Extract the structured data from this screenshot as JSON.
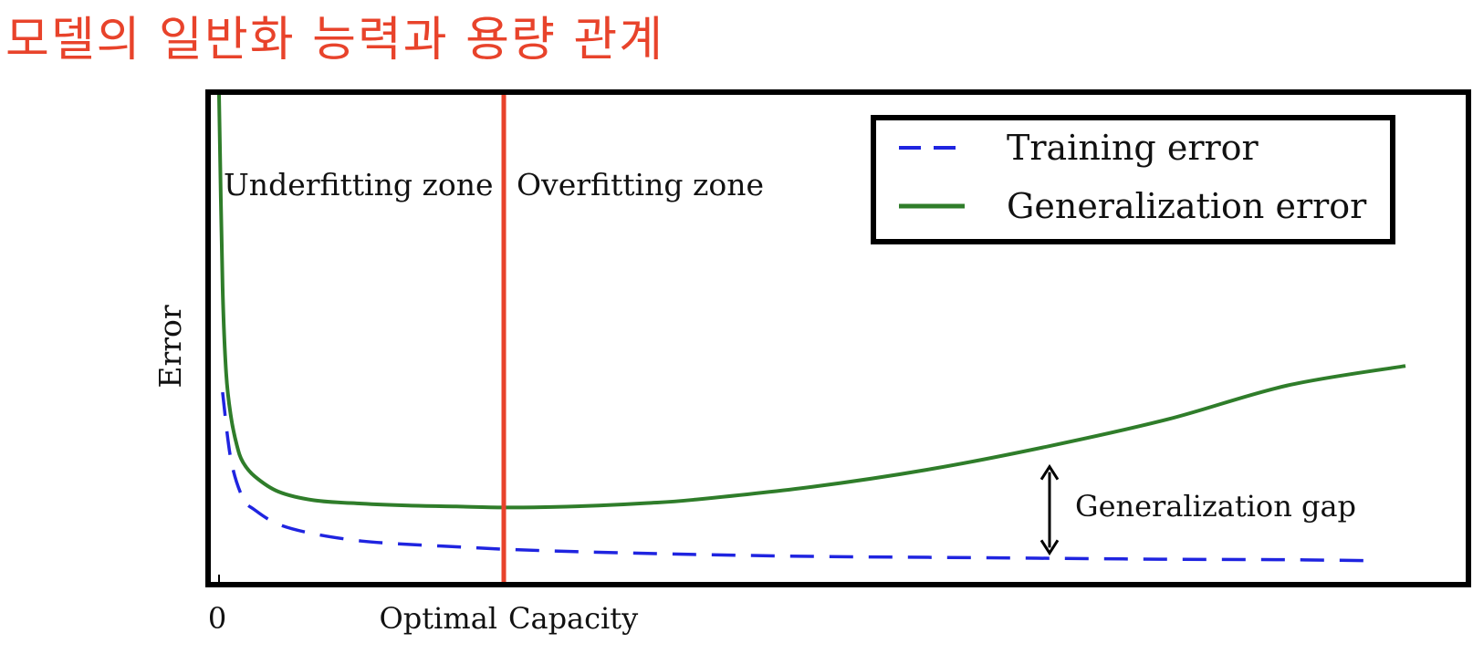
{
  "slide": {
    "title": "모델의 일반화 능력과 용량 관계",
    "title_color": "#e8432b"
  },
  "chart_data": {
    "type": "line",
    "title": "",
    "xlabel": "Capacity",
    "ylabel": "Error",
    "x_tick_labels": [
      "0",
      "Optimal"
    ],
    "xlim": [
      0,
      100
    ],
    "ylim": [
      0,
      100
    ],
    "grid": false,
    "legend_position": "top-right",
    "series": [
      {
        "name": "Training error",
        "style": "dashed",
        "color": "#1f24e0",
        "x": [
          0.3,
          1,
          2,
          3,
          5,
          8,
          12,
          16,
          20,
          24,
          30,
          40,
          50,
          60,
          70,
          80,
          90,
          97.5
        ],
        "y": [
          38,
          24,
          16,
          13.5,
          10.5,
          8.5,
          7,
          6.3,
          5.8,
          5.3,
          4.8,
          4.2,
          3.8,
          3.6,
          3.4,
          3.2,
          3.1,
          2.9
        ]
      },
      {
        "name": "Generalization error",
        "style": "solid",
        "color": "#2f7d2a",
        "x": [
          0,
          0.3,
          0.6,
          1,
          1.5,
          2,
          3,
          5,
          8,
          12,
          16,
          20,
          24,
          28,
          32,
          36,
          40,
          50,
          60,
          70,
          80,
          90,
          100
        ],
        "y": [
          100,
          60,
          42,
          33,
          27,
          23.5,
          20.5,
          17.3,
          15.5,
          14.8,
          14.4,
          14.2,
          14.0,
          14.1,
          14.4,
          14.9,
          15.6,
          18.3,
          22,
          26.8,
          32.4,
          39.4,
          43.5
        ]
      }
    ],
    "annotations": [
      {
        "text": "Underfitting zone",
        "region": "left of optimal"
      },
      {
        "text": "Overfitting zone",
        "region": "right of optimal"
      },
      {
        "text": "Generalization gap",
        "arrow_x": 70,
        "arrow_from_y": 4.5,
        "arrow_to_y": 22.5
      }
    ],
    "optimal_capacity_x": 24,
    "optimal_line_color": "#e8432b"
  }
}
